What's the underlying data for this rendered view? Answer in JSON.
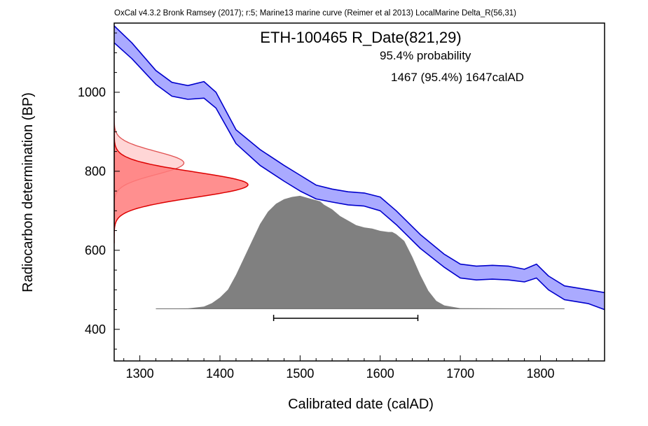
{
  "header": "OxCal v4.3.2 Bronk Ramsey (2017); r:5; Marine13 marine curve (Reimer et al 2013) LocalMarine Delta_R(56,31)",
  "chart_data": {
    "type": "area",
    "title": "ETH-100465 R_Date(821,29)",
    "probability_label": "95.4% probability",
    "range_label": "1467 (95.4%) 1647calAD",
    "xlabel": "Calibrated date (calAD)",
    "ylabel": "Radiocarbon determination (BP)",
    "xlim": [
      1268,
      1880
    ],
    "ylim": [
      320,
      1175
    ],
    "x_ticks": [
      1300,
      1400,
      1500,
      1600,
      1700,
      1800
    ],
    "y_ticks": [
      400,
      600,
      800,
      1000
    ],
    "grid": false,
    "colors": {
      "curve_fill": "#aaaaff",
      "curve_line": "#0000cc",
      "measured_fill": "#ff7b7b",
      "measured_line": "#dd0000",
      "raw_fill": "#ffd6d6",
      "raw_line": "#e05050",
      "posterior_fill": "#808080"
    },
    "calibration_curve": {
      "name": "Marine13 marine curve",
      "x": [
        1268,
        1290,
        1320,
        1340,
        1360,
        1380,
        1395,
        1420,
        1450,
        1480,
        1500,
        1520,
        1540,
        1560,
        1580,
        1600,
        1620,
        1650,
        1680,
        1700,
        1720,
        1740,
        1760,
        1780,
        1795,
        1810,
        1830,
        1860,
        1880
      ],
      "upper": [
        1168,
        1125,
        1055,
        1025,
        1017,
        1027,
        1000,
        905,
        855,
        815,
        790,
        765,
        755,
        748,
        745,
        735,
        700,
        640,
        590,
        565,
        560,
        562,
        560,
        552,
        565,
        535,
        510,
        500,
        493
      ],
      "lower": [
        1125,
        1085,
        1020,
        990,
        982,
        985,
        960,
        870,
        815,
        775,
        750,
        730,
        722,
        715,
        712,
        700,
        665,
        605,
        557,
        530,
        525,
        527,
        525,
        520,
        530,
        500,
        475,
        465,
        450
      ]
    },
    "measured_probability": {
      "name": "R_Date",
      "mean": 766,
      "sd": 32,
      "range": [
        618,
        915
      ],
      "peak_x": 1435
    },
    "raw_probability": {
      "mean": 821,
      "sd": 29,
      "range": [
        686,
        956
      ],
      "peak_x": 1355
    },
    "posterior": {
      "baseline_bp": 452,
      "baseline_x": [
        1320,
        1830
      ],
      "x": [
        1320,
        1360,
        1380,
        1390,
        1400,
        1410,
        1420,
        1430,
        1440,
        1450,
        1460,
        1470,
        1480,
        1490,
        1500,
        1510,
        1520,
        1525,
        1530,
        1540,
        1550,
        1560,
        1570,
        1580,
        1590,
        1600,
        1610,
        1615,
        1620,
        1630,
        1640,
        1650,
        1660,
        1670,
        1680,
        1700,
        1830
      ],
      "density": [
        0,
        0.003,
        0.02,
        0.05,
        0.1,
        0.17,
        0.3,
        0.45,
        0.6,
        0.75,
        0.86,
        0.93,
        0.97,
        0.99,
        1.0,
        0.98,
        0.96,
        0.95,
        0.92,
        0.88,
        0.82,
        0.78,
        0.74,
        0.72,
        0.71,
        0.69,
        0.68,
        0.68,
        0.66,
        0.6,
        0.46,
        0.3,
        0.16,
        0.07,
        0.03,
        0.005,
        0
      ],
      "height_bp": 286
    },
    "range_bar": {
      "from": 1467,
      "to": 1647,
      "level_bp": 428
    }
  }
}
